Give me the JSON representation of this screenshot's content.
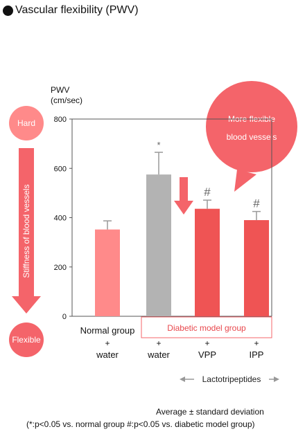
{
  "title": "Vascular flexibility (PWV)",
  "left_scale": {
    "top_label": "Hard",
    "arrow_label": "Stiffness of blood vessels",
    "bottom_label": "Flexible"
  },
  "callout": {
    "line1": "More flexible",
    "line2": "blood vessels"
  },
  "diabetic_box_label": "Diabetic model group",
  "lacto_label": "Lactotripeptides",
  "footnote_line1": "Average ± standard deviation",
  "footnote_line2": "(*:p<0.05 vs. normal group #:p<0.05 vs. diabetic model group)",
  "colors": {
    "normal": "#ff8a8a",
    "diabetic": "#b3b3b3",
    "treated": "#ef5454",
    "accent": "#f4646a",
    "axis": "#555555"
  },
  "chart_data": {
    "type": "bar",
    "ylabel_line1": "PWV",
    "ylabel_line2": "(cm/sec)",
    "ylim": [
      0,
      800
    ],
    "yticks": [
      0,
      200,
      400,
      600,
      800
    ],
    "grid": false,
    "categories": [
      {
        "top": "Normal group",
        "plus": "+",
        "bottom": "water"
      },
      {
        "top": "",
        "plus": "+",
        "bottom": "water"
      },
      {
        "top": "",
        "plus": "+",
        "bottom": "VPP"
      },
      {
        "top": "",
        "plus": "+",
        "bottom": "IPP"
      }
    ],
    "values": [
      352,
      575,
      436,
      390
    ],
    "errors": [
      35,
      90,
      35,
      35
    ],
    "significance": [
      "",
      "*",
      "#",
      "#"
    ]
  }
}
